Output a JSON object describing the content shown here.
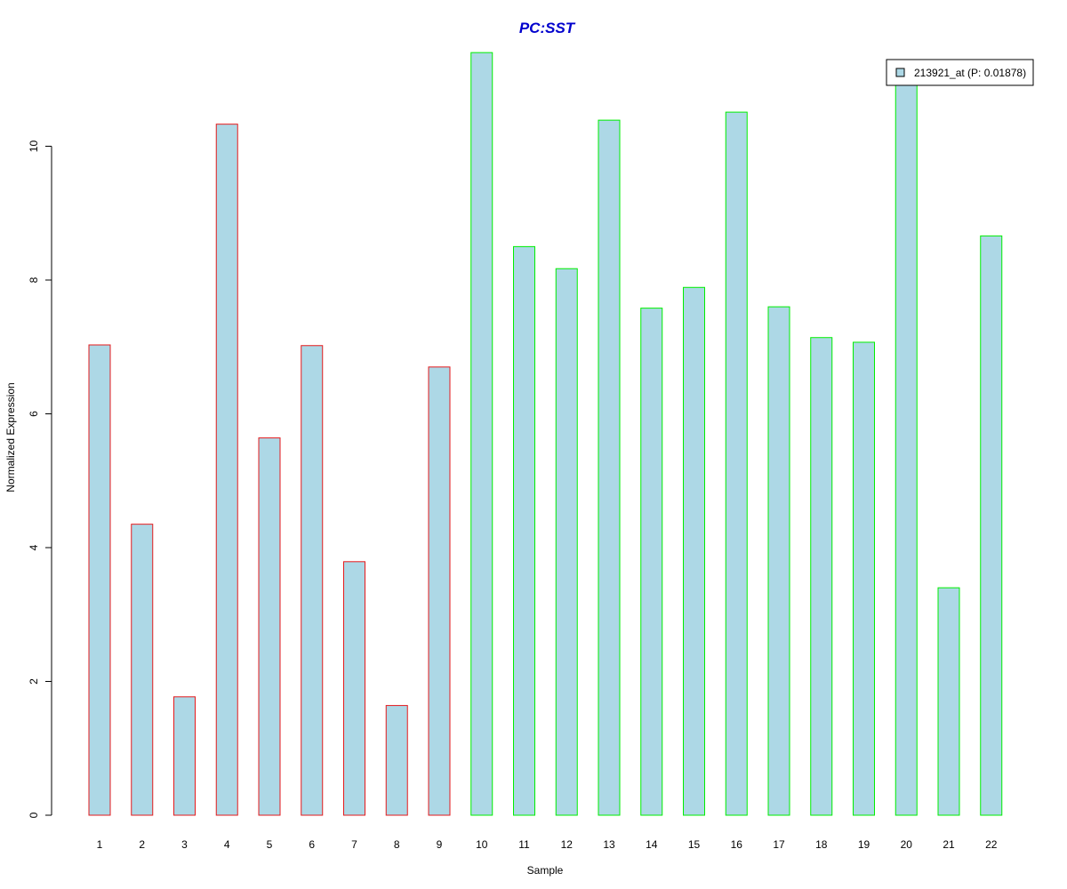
{
  "chart_data": {
    "type": "bar",
    "title": "PC:SST",
    "xlabel": "Sample",
    "ylabel": "Normalized Expression",
    "categories": [
      "1",
      "2",
      "3",
      "4",
      "5",
      "6",
      "7",
      "8",
      "9",
      "10",
      "11",
      "12",
      "13",
      "14",
      "15",
      "16",
      "17",
      "18",
      "19",
      "20",
      "21",
      "22"
    ],
    "series": [
      {
        "name": "213921_at (P: 0.01878)",
        "values": [
          7.03,
          4.35,
          1.77,
          10.33,
          5.64,
          7.02,
          3.79,
          1.64,
          6.7,
          11.4,
          8.5,
          8.17,
          10.39,
          7.58,
          7.89,
          10.51,
          7.6,
          7.14,
          7.07,
          11.1,
          3.4,
          8.66
        ]
      }
    ],
    "bar_groups": [
      "PC",
      "PC",
      "PC",
      "PC",
      "PC",
      "PC",
      "PC",
      "PC",
      "PC",
      "SST",
      "SST",
      "SST",
      "SST",
      "SST",
      "SST",
      "SST",
      "SST",
      "SST",
      "SST",
      "SST",
      "SST",
      "SST"
    ],
    "group_border_colors": {
      "PC": "#e41a1c",
      "SST": "#00ee00"
    },
    "bar_fill": "#add8e6",
    "title_color": "#0000cd",
    "ylim": [
      0,
      11.6
    ],
    "yticks": [
      0,
      2,
      4,
      6,
      8,
      10
    ],
    "grid": false,
    "legend_position": "top-right"
  }
}
